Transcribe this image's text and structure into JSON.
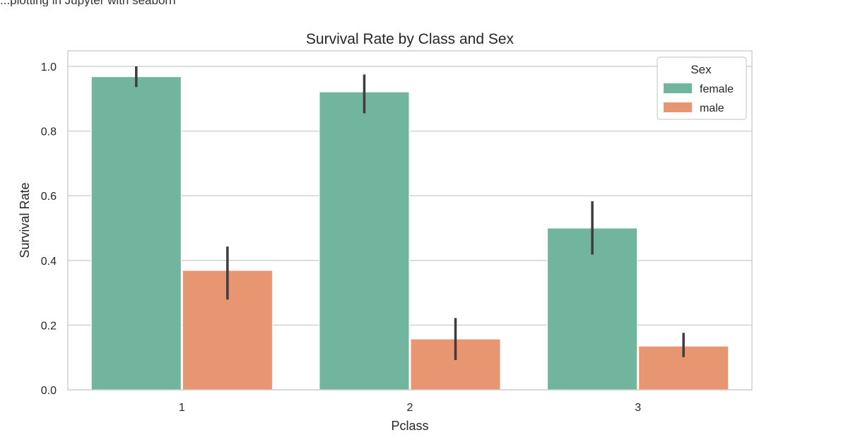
{
  "page": {
    "top_note": "...plotting in Jupyter with seaborn"
  },
  "chart_data": {
    "type": "bar",
    "title": "Survival Rate by Class and Sex",
    "xlabel": "Pclass",
    "ylabel": "Survival Rate",
    "categories": [
      "1",
      "2",
      "3"
    ],
    "ylim": [
      0,
      1.05
    ],
    "yticks": [
      0.0,
      0.2,
      0.4,
      0.6,
      0.8,
      1.0
    ],
    "ytick_labels": [
      "0.0",
      "0.2",
      "0.4",
      "0.6",
      "0.8",
      "1.0"
    ],
    "grid": true,
    "legend": {
      "title": "Sex",
      "placement": "top-right"
    },
    "series": [
      {
        "name": "female",
        "color": "#72b59f",
        "values": [
          0.968,
          0.921,
          0.5
        ],
        "ci_low": [
          0.936,
          0.855,
          0.418
        ],
        "ci_high": [
          1.0,
          0.975,
          0.583
        ]
      },
      {
        "name": "male",
        "color": "#e89672",
        "values": [
          0.369,
          0.157,
          0.135
        ],
        "ci_low": [
          0.279,
          0.092,
          0.101
        ],
        "ci_high": [
          0.443,
          0.222,
          0.176
        ]
      }
    ]
  }
}
